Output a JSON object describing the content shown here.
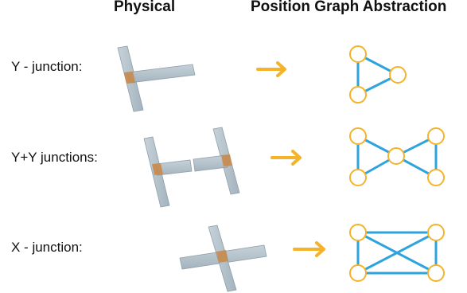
{
  "headers": {
    "physical": "Physical",
    "abstraction": "Position Graph Abstraction"
  },
  "rows": [
    {
      "label": "Y - junction:"
    },
    {
      "label": "Y+Y junctions:"
    },
    {
      "label": "X - junction:"
    }
  ],
  "colors": {
    "wire_fill": "#a9b8c2",
    "wire_edge": "#8899a4",
    "junction": "#c98a4b",
    "arrow": "#f5b32a",
    "node_stroke": "#f5b32a",
    "edge": "#2ea3dc"
  }
}
